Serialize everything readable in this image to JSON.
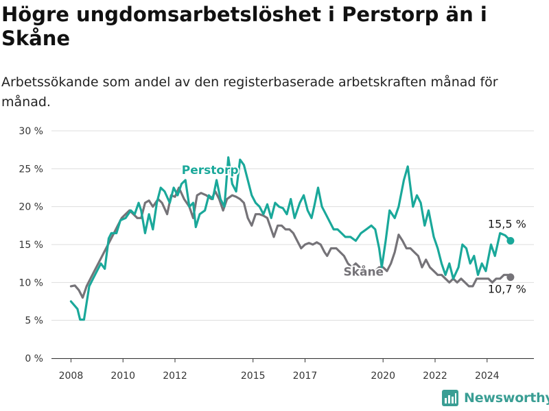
{
  "title": "Högre ungdomsarbetslöshet i Perstorp än i Skåne",
  "subtitle": "Arbetssökande som andel av den registerbaserade arbetskraften månad för månad.",
  "brand": "Newsworthy",
  "colors": {
    "perstorp": "#1aa89a",
    "skane": "#757378",
    "grid": "#dddddd",
    "brand": "#3a9e94"
  },
  "chart_data": {
    "type": "line",
    "title": "Högre ungdomsarbetslöshet i Perstorp än i Skåne",
    "xlabel": "",
    "ylabel": "",
    "ylim": [
      0,
      30
    ],
    "xlim": [
      2007.25,
      2025.8
    ],
    "yticks": [
      0,
      5,
      10,
      15,
      20,
      25,
      30
    ],
    "ytick_labels": [
      "0 %",
      "5 %",
      "10 %",
      "15 %",
      "20 %",
      "25 %",
      "30 %"
    ],
    "xticks": [
      2008,
      2010,
      2012,
      2015,
      2017,
      2020,
      2022,
      2024
    ],
    "xtick_labels": [
      "2008",
      "2010",
      "2012",
      "2015",
      "2017",
      "2020",
      "2022",
      "2024"
    ],
    "grid": true,
    "legend": "inline labels",
    "series": [
      {
        "name": "Perstorp",
        "color": "#1aa89a",
        "end_label": "15,5 %",
        "label_position": [
          2013.35,
          24.3
        ],
        "points": [
          [
            2008.0,
            7.5
          ],
          [
            2008.25,
            6.5
          ],
          [
            2008.35,
            5.1
          ],
          [
            2008.5,
            5.1
          ],
          [
            2008.7,
            9.5
          ],
          [
            2008.85,
            10.5
          ],
          [
            2009.0,
            11.5
          ],
          [
            2009.15,
            12.5
          ],
          [
            2009.3,
            11.8
          ],
          [
            2009.45,
            15.8
          ],
          [
            2009.55,
            16.5
          ],
          [
            2009.75,
            16.5
          ],
          [
            2009.9,
            18.2
          ],
          [
            2010.1,
            18.5
          ],
          [
            2010.3,
            19.5
          ],
          [
            2010.45,
            19.0
          ],
          [
            2010.6,
            20.5
          ],
          [
            2010.7,
            19.5
          ],
          [
            2010.85,
            16.5
          ],
          [
            2011.0,
            19.0
          ],
          [
            2011.15,
            17.0
          ],
          [
            2011.3,
            20.5
          ],
          [
            2011.45,
            22.5
          ],
          [
            2011.6,
            22.0
          ],
          [
            2011.8,
            20.5
          ],
          [
            2011.95,
            22.5
          ],
          [
            2012.1,
            21.5
          ],
          [
            2012.25,
            23.0
          ],
          [
            2012.4,
            23.5
          ],
          [
            2012.55,
            20.0
          ],
          [
            2012.7,
            20.5
          ],
          [
            2012.8,
            17.3
          ],
          [
            2012.95,
            19.0
          ],
          [
            2013.15,
            19.5
          ],
          [
            2013.3,
            21.5
          ],
          [
            2013.45,
            21.0
          ],
          [
            2013.6,
            23.5
          ],
          [
            2013.75,
            21.0
          ],
          [
            2013.9,
            20.0
          ],
          [
            2014.05,
            26.5
          ],
          [
            2014.2,
            23.0
          ],
          [
            2014.35,
            22.0
          ],
          [
            2014.5,
            26.2
          ],
          [
            2014.65,
            25.5
          ],
          [
            2014.8,
            23.5
          ],
          [
            2014.95,
            21.5
          ],
          [
            2015.1,
            20.5
          ],
          [
            2015.25,
            20.0
          ],
          [
            2015.4,
            19.0
          ],
          [
            2015.55,
            20.3
          ],
          [
            2015.7,
            18.5
          ],
          [
            2015.85,
            20.5
          ],
          [
            2016.0,
            20.0
          ],
          [
            2016.15,
            19.8
          ],
          [
            2016.3,
            19.0
          ],
          [
            2016.45,
            21.0
          ],
          [
            2016.6,
            18.5
          ],
          [
            2016.8,
            20.5
          ],
          [
            2016.95,
            21.5
          ],
          [
            2017.1,
            19.5
          ],
          [
            2017.25,
            18.5
          ],
          [
            2017.35,
            20.0
          ],
          [
            2017.5,
            22.5
          ],
          [
            2017.65,
            20.0
          ],
          [
            2017.8,
            19.0
          ],
          [
            2017.95,
            18.0
          ],
          [
            2018.1,
            17.0
          ],
          [
            2018.25,
            17.0
          ],
          [
            2018.4,
            16.5
          ],
          [
            2018.55,
            16.0
          ],
          [
            2018.75,
            16.0
          ],
          [
            2018.95,
            15.5
          ],
          [
            2019.15,
            16.5
          ],
          [
            2019.35,
            17.0
          ],
          [
            2019.55,
            17.5
          ],
          [
            2019.7,
            17.0
          ],
          [
            2019.85,
            14.5
          ],
          [
            2019.95,
            12.0
          ],
          [
            2020.1,
            15.5
          ],
          [
            2020.25,
            19.5
          ],
          [
            2020.45,
            18.5
          ],
          [
            2020.6,
            20.0
          ],
          [
            2020.8,
            23.5
          ],
          [
            2020.95,
            25.3
          ],
          [
            2021.15,
            20.0
          ],
          [
            2021.3,
            21.5
          ],
          [
            2021.45,
            20.5
          ],
          [
            2021.6,
            17.5
          ],
          [
            2021.75,
            19.5
          ],
          [
            2021.95,
            16.0
          ],
          [
            2022.1,
            14.5
          ],
          [
            2022.25,
            12.5
          ],
          [
            2022.4,
            11.0
          ],
          [
            2022.55,
            12.5
          ],
          [
            2022.7,
            10.5
          ],
          [
            2022.9,
            12.0
          ],
          [
            2023.05,
            15.0
          ],
          [
            2023.2,
            14.5
          ],
          [
            2023.35,
            12.5
          ],
          [
            2023.5,
            13.5
          ],
          [
            2023.65,
            11.0
          ],
          [
            2023.8,
            12.5
          ],
          [
            2023.95,
            11.5
          ],
          [
            2024.15,
            15.0
          ],
          [
            2024.3,
            13.5
          ],
          [
            2024.5,
            16.5
          ],
          [
            2024.7,
            16.2
          ],
          [
            2024.9,
            15.5
          ]
        ]
      },
      {
        "name": "Skåne",
        "color": "#757378",
        "end_label": "10,7 %",
        "label_position": [
          2019.25,
          10.9
        ],
        "points": [
          [
            2008.0,
            9.5
          ],
          [
            2008.15,
            9.6
          ],
          [
            2008.3,
            9.0
          ],
          [
            2008.45,
            8.0
          ],
          [
            2008.6,
            9.5
          ],
          [
            2008.75,
            10.5
          ],
          [
            2008.9,
            11.5
          ],
          [
            2009.05,
            12.5
          ],
          [
            2009.2,
            13.5
          ],
          [
            2009.35,
            14.5
          ],
          [
            2009.5,
            15.5
          ],
          [
            2009.65,
            16.5
          ],
          [
            2009.8,
            17.5
          ],
          [
            2009.95,
            18.5
          ],
          [
            2010.1,
            19.0
          ],
          [
            2010.25,
            19.5
          ],
          [
            2010.4,
            19.0
          ],
          [
            2010.55,
            18.5
          ],
          [
            2010.7,
            18.5
          ],
          [
            2010.85,
            20.5
          ],
          [
            2011.0,
            20.8
          ],
          [
            2011.15,
            20.0
          ],
          [
            2011.35,
            21.0
          ],
          [
            2011.5,
            20.5
          ],
          [
            2011.7,
            19.0
          ],
          [
            2011.85,
            21.5
          ],
          [
            2012.0,
            21.3
          ],
          [
            2012.15,
            22.5
          ],
          [
            2012.35,
            21.0
          ],
          [
            2012.55,
            20.0
          ],
          [
            2012.7,
            18.5
          ],
          [
            2012.85,
            21.5
          ],
          [
            2013.0,
            21.8
          ],
          [
            2013.2,
            21.5
          ],
          [
            2013.4,
            21.0
          ],
          [
            2013.55,
            22.0
          ],
          [
            2013.7,
            21.0
          ],
          [
            2013.85,
            19.5
          ],
          [
            2014.0,
            21.0
          ],
          [
            2014.2,
            21.5
          ],
          [
            2014.35,
            21.3
          ],
          [
            2014.5,
            21.0
          ],
          [
            2014.65,
            20.5
          ],
          [
            2014.8,
            18.5
          ],
          [
            2014.95,
            17.5
          ],
          [
            2015.1,
            19.0
          ],
          [
            2015.25,
            19.0
          ],
          [
            2015.4,
            18.8
          ],
          [
            2015.55,
            18.5
          ],
          [
            2015.7,
            17.0
          ],
          [
            2015.8,
            16.0
          ],
          [
            2015.95,
            17.5
          ],
          [
            2016.1,
            17.5
          ],
          [
            2016.25,
            17.0
          ],
          [
            2016.4,
            17.0
          ],
          [
            2016.55,
            16.5
          ],
          [
            2016.7,
            15.5
          ],
          [
            2016.85,
            14.5
          ],
          [
            2017.0,
            15.0
          ],
          [
            2017.15,
            15.2
          ],
          [
            2017.3,
            15.0
          ],
          [
            2017.45,
            15.3
          ],
          [
            2017.6,
            15.0
          ],
          [
            2017.75,
            14.0
          ],
          [
            2017.85,
            13.5
          ],
          [
            2018.0,
            14.5
          ],
          [
            2018.2,
            14.5
          ],
          [
            2018.35,
            14.0
          ],
          [
            2018.5,
            13.5
          ],
          [
            2018.65,
            12.5
          ],
          [
            2018.8,
            12.0
          ],
          [
            2018.95,
            12.5
          ],
          [
            2019.1,
            12.0
          ],
          [
            2019.2,
            11.5
          ],
          [
            2019.4,
            11.5
          ],
          [
            2019.55,
            11.0
          ],
          [
            2019.7,
            11.5
          ],
          [
            2019.85,
            12.0
          ],
          [
            2020.0,
            12.0
          ],
          [
            2020.15,
            11.5
          ],
          [
            2020.3,
            12.5
          ],
          [
            2020.45,
            14.0
          ],
          [
            2020.6,
            16.3
          ],
          [
            2020.75,
            15.5
          ],
          [
            2020.9,
            14.5
          ],
          [
            2021.05,
            14.5
          ],
          [
            2021.2,
            14.0
          ],
          [
            2021.35,
            13.5
          ],
          [
            2021.5,
            12.0
          ],
          [
            2021.65,
            13.0
          ],
          [
            2021.8,
            12.0
          ],
          [
            2021.95,
            11.5
          ],
          [
            2022.1,
            11.0
          ],
          [
            2022.25,
            11.0
          ],
          [
            2022.4,
            10.5
          ],
          [
            2022.55,
            10.0
          ],
          [
            2022.7,
            10.5
          ],
          [
            2022.85,
            10.0
          ],
          [
            2023.0,
            10.5
          ],
          [
            2023.15,
            10.0
          ],
          [
            2023.3,
            9.5
          ],
          [
            2023.45,
            9.5
          ],
          [
            2023.6,
            10.5
          ],
          [
            2023.75,
            10.5
          ],
          [
            2023.9,
            10.5
          ],
          [
            2024.05,
            10.5
          ],
          [
            2024.2,
            10.0
          ],
          [
            2024.35,
            10.5
          ],
          [
            2024.5,
            10.5
          ],
          [
            2024.65,
            11.0
          ],
          [
            2024.8,
            11.0
          ],
          [
            2024.9,
            10.7
          ]
        ]
      }
    ]
  }
}
